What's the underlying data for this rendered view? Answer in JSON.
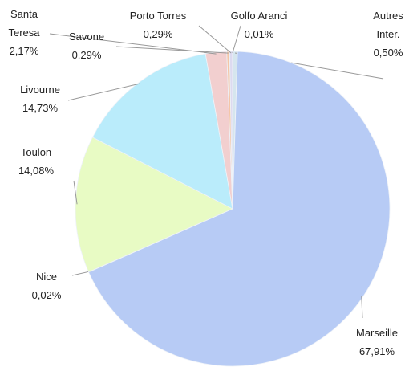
{
  "chart_data": {
    "type": "pie",
    "categories": [
      "Autres Inter.",
      "Marseille",
      "Nice",
      "Toulon",
      "Livourne",
      "Santa Teresa",
      "Savone",
      "Porto Torres",
      "Golfo Aranci"
    ],
    "values": [
      0.5,
      67.91,
      0.02,
      14.08,
      14.73,
      2.17,
      0.29,
      0.29,
      0.01
    ],
    "value_labels": [
      "0,50%",
      "67,91%",
      "0,02%",
      "14,08%",
      "14,73%",
      "2,17%",
      "0,29%",
      "0,29%",
      "0,01%"
    ],
    "colors": [
      "#d6e6ee",
      "#b7cbf5",
      "#d4f3b4",
      "#e8fbc4",
      "#baecfb",
      "#f2cfcf",
      "#f5c6a6",
      "#dcdaf0",
      "#c4e9e0"
    ]
  }
}
